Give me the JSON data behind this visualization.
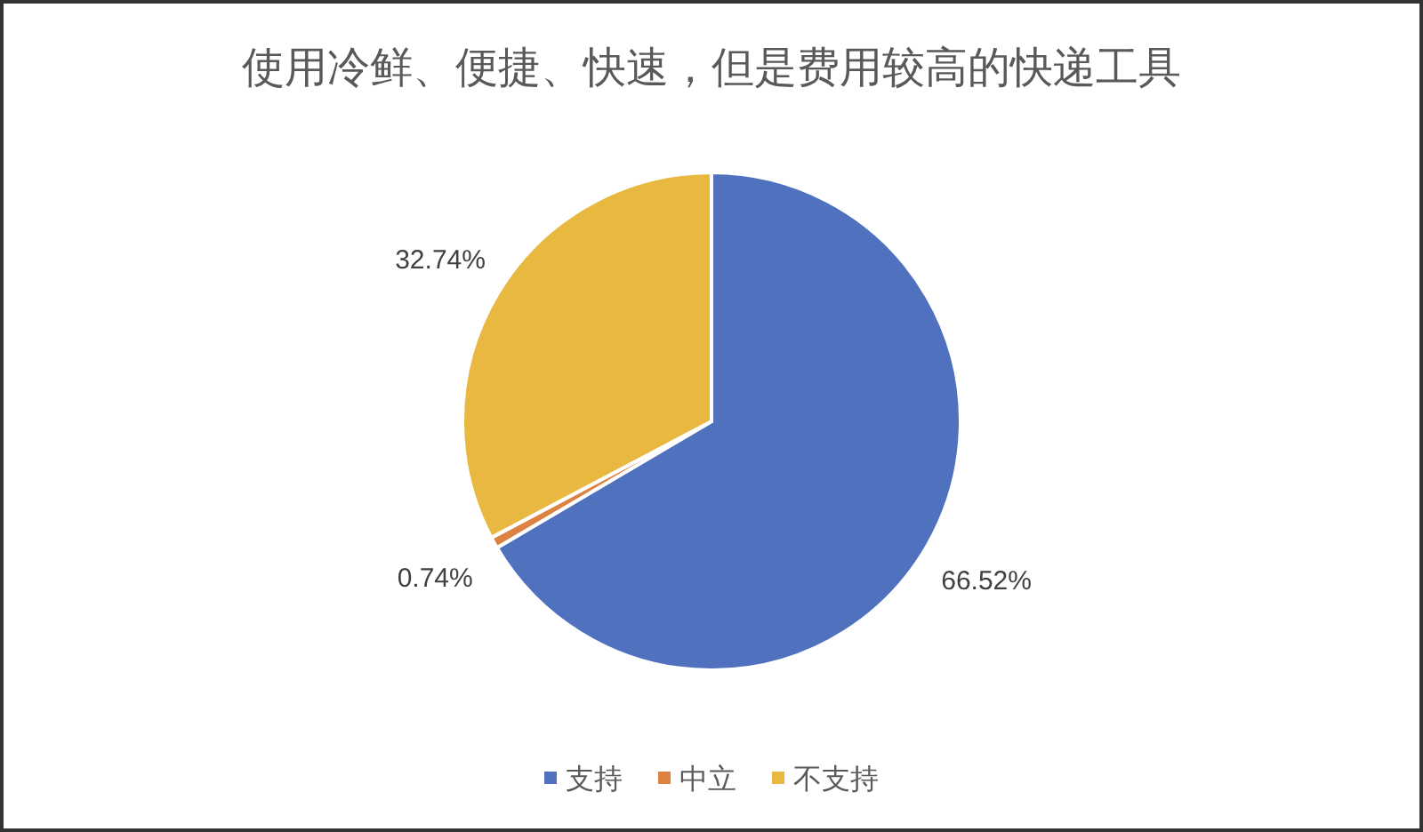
{
  "chart_data": {
    "type": "pie",
    "title": "使用冷鲜、便捷、快速，但是费用较高的快递工具",
    "categories": [
      "支持",
      "中立",
      "不支持"
    ],
    "values": [
      66.52,
      0.74,
      32.74
    ],
    "colors": [
      "#4f71be",
      "#de8244",
      "#e8b840"
    ],
    "value_labels": [
      "66.52%",
      "0.74%",
      "32.74%"
    ],
    "legend": "bottom"
  }
}
